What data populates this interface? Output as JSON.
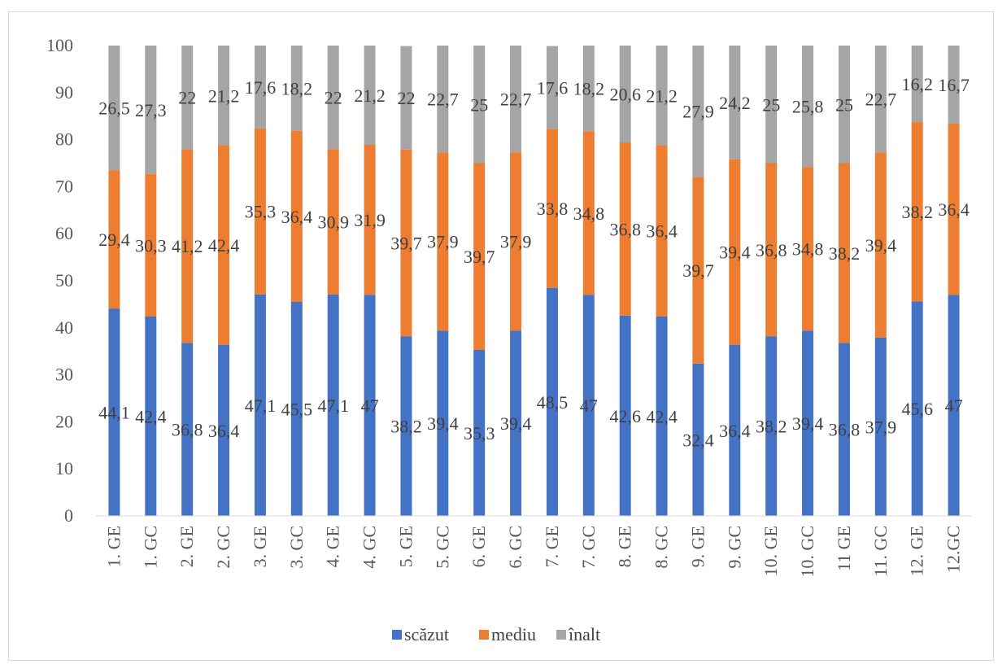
{
  "chart_data": {
    "type": "bar",
    "stacked": true,
    "ylim": [
      0,
      100
    ],
    "yticks": [
      0,
      10,
      20,
      30,
      40,
      50,
      60,
      70,
      80,
      90,
      100
    ],
    "grid": false,
    "legend_position": "bottom",
    "categories": [
      "1. GE",
      "1. GC",
      "2. GE",
      "2. GC",
      "3. GE",
      "3. GC",
      "4. GE",
      "4. GC",
      "5. GE",
      "5. GC",
      "6. GE",
      "6. GC",
      "7. GE",
      "7. GC",
      "8. GE",
      "8. GC",
      "9. GE",
      "9. GC",
      "10. GE",
      "10. GC",
      "11 GE",
      "11. GC",
      "12. GE",
      "12.GC"
    ],
    "series": [
      {
        "name": "scăzut",
        "color": "#4472c4",
        "values": [
          44.1,
          42.4,
          36.8,
          36.4,
          47.1,
          45.5,
          47.1,
          47,
          38.2,
          39.4,
          35.3,
          39.4,
          48.5,
          47,
          42.6,
          42.4,
          32.4,
          36.4,
          38.2,
          39.4,
          36.8,
          37.9,
          45.6,
          47
        ],
        "labels": [
          "44,1",
          "42,4",
          "36,8",
          "36,4",
          "47,1",
          "45,5",
          "47,1",
          "47",
          "38,2",
          "39,4",
          "35,3",
          "39,4",
          "48,5",
          "47",
          "42,6",
          "42,4",
          "32,4",
          "36,4",
          "38,2",
          "39,4",
          "36,8",
          "37,9",
          "45,6",
          "47"
        ]
      },
      {
        "name": "mediu",
        "color": "#ed7d31",
        "values": [
          29.4,
          30.3,
          41.2,
          42.4,
          35.3,
          36.4,
          30.9,
          31.9,
          39.7,
          37.9,
          39.7,
          37.9,
          33.8,
          34.8,
          36.8,
          36.4,
          39.7,
          39.4,
          36.8,
          34.8,
          38.2,
          39.4,
          38.2,
          36.4
        ],
        "labels": [
          "29,4",
          "30,3",
          "41,2",
          "42,4",
          "35,3",
          "36,4",
          "30,9",
          "31,9",
          "39,7",
          "37,9",
          "39,7",
          "37,9",
          "33,8",
          "34,8",
          "36,8",
          "36,4",
          "39,7",
          "39,4",
          "36,8",
          "34,8",
          "38,2",
          "39,4",
          "38,2",
          "36,4"
        ]
      },
      {
        "name": "înalt",
        "color": "#a5a5a5",
        "values": [
          26.5,
          27.3,
          22,
          21.2,
          17.6,
          18.2,
          22,
          21.2,
          22,
          22.7,
          25,
          22.7,
          17.6,
          18.2,
          20.6,
          21.2,
          27.9,
          24.2,
          25,
          25.8,
          25,
          22.7,
          16.2,
          16.7
        ],
        "labels": [
          "26,5",
          "27,3",
          "22",
          "21,2",
          "17,6",
          "18,2",
          "22",
          "21,2",
          "22",
          "22,7",
          "25",
          "22,7",
          "17,6",
          "18,2",
          "20,6",
          "21,2",
          "27,9",
          "24,2",
          "25",
          "25,8",
          "25",
          "22,7",
          "16,2",
          "16,7"
        ]
      }
    ]
  }
}
